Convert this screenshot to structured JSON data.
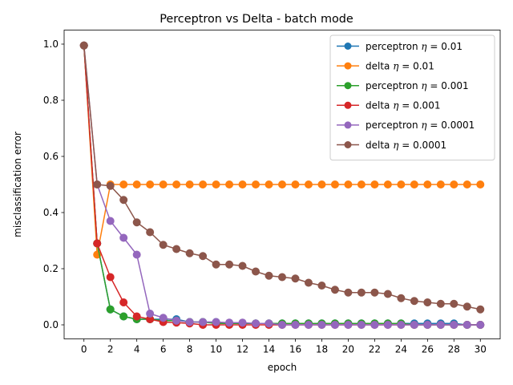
{
  "chart_data": {
    "type": "line",
    "title": "Perceptron vs Delta - batch mode",
    "xlabel": "epoch",
    "ylabel": "misclassification error",
    "xlim": [
      -1.5,
      31.5
    ],
    "ylim": [
      -0.05,
      1.05
    ],
    "xticks": [
      0,
      2,
      4,
      6,
      8,
      10,
      12,
      14,
      16,
      18,
      20,
      22,
      24,
      26,
      28,
      30
    ],
    "yticks": [
      0.0,
      0.2,
      0.4,
      0.6,
      0.8,
      1.0
    ],
    "ytick_labels": [
      "0.0",
      "0.2",
      "0.4",
      "0.6",
      "0.8",
      "1.0"
    ],
    "grid": false,
    "legend_position": "top-right",
    "x": [
      0,
      1,
      2,
      3,
      4,
      5,
      6,
      7,
      8,
      9,
      10,
      11,
      12,
      13,
      14,
      15,
      16,
      17,
      18,
      19,
      20,
      21,
      22,
      23,
      24,
      25,
      26,
      27,
      28,
      29,
      30
    ],
    "series": [
      {
        "name_prefix": "perceptron",
        "name_eta": "0.01",
        "color": "#1f77b4",
        "values": [
          0.995,
          0.29,
          0.055,
          0.03,
          0.02,
          0.02,
          0.02,
          0.02,
          0.01,
          0.01,
          0.01,
          0.005,
          0.005,
          0.005,
          0.005,
          0.005,
          0.005,
          0.005,
          0.005,
          0.005,
          0.005,
          0.005,
          0.005,
          0.005,
          0.005,
          0.005,
          0.005,
          0.005,
          0.005,
          0.0,
          0.0
        ]
      },
      {
        "name_prefix": "delta",
        "name_eta": "0.01",
        "color": "#ff7f0e",
        "values": [
          0.995,
          0.25,
          0.5,
          0.5,
          0.5,
          0.5,
          0.5,
          0.5,
          0.5,
          0.5,
          0.5,
          0.5,
          0.5,
          0.5,
          0.5,
          0.5,
          0.5,
          0.5,
          0.5,
          0.5,
          0.5,
          0.5,
          0.5,
          0.5,
          0.5,
          0.5,
          0.5,
          0.5,
          0.5,
          0.5,
          0.5
        ]
      },
      {
        "name_prefix": "perceptron",
        "name_eta": "0.001",
        "color": "#2ca02c",
        "values": [
          0.995,
          0.29,
          0.055,
          0.03,
          0.02,
          0.02,
          0.015,
          0.015,
          0.01,
          0.01,
          0.005,
          0.005,
          0.005,
          0.005,
          0.005,
          0.005,
          0.005,
          0.005,
          0.005,
          0.005,
          0.005,
          0.005,
          0.005,
          0.005,
          0.005,
          0.0,
          0.0,
          0.0,
          0.0,
          0.0,
          0.0
        ]
      },
      {
        "name_prefix": "delta",
        "name_eta": "0.001",
        "color": "#d62728",
        "values": [
          0.995,
          0.29,
          0.17,
          0.08,
          0.03,
          0.02,
          0.01,
          0.008,
          0.005,
          0.0,
          0.0,
          0.0,
          0.0,
          0.0,
          0.0,
          0.0,
          0.0,
          0.0,
          0.0,
          0.0,
          0.0,
          0.0,
          0.0,
          0.0,
          0.0,
          0.0,
          0.0,
          0.0,
          0.0,
          0.0,
          0.0
        ]
      },
      {
        "name_prefix": "perceptron",
        "name_eta": "0.0001",
        "color": "#9467bd",
        "values": [
          0.995,
          0.5,
          0.37,
          0.31,
          0.25,
          0.04,
          0.025,
          0.015,
          0.01,
          0.01,
          0.01,
          0.008,
          0.008,
          0.005,
          0.005,
          0.0,
          0.0,
          0.0,
          0.0,
          0.0,
          0.0,
          0.0,
          0.0,
          0.0,
          0.0,
          0.0,
          0.0,
          0.0,
          0.0,
          0.0,
          0.0
        ]
      },
      {
        "name_prefix": "delta",
        "name_eta": "0.0001",
        "color": "#8c564b",
        "values": [
          0.995,
          0.5,
          0.495,
          0.445,
          0.365,
          0.33,
          0.285,
          0.27,
          0.255,
          0.245,
          0.215,
          0.215,
          0.21,
          0.19,
          0.175,
          0.17,
          0.165,
          0.15,
          0.14,
          0.125,
          0.115,
          0.115,
          0.115,
          0.11,
          0.095,
          0.085,
          0.08,
          0.075,
          0.075,
          0.065,
          0.055
        ]
      }
    ]
  }
}
